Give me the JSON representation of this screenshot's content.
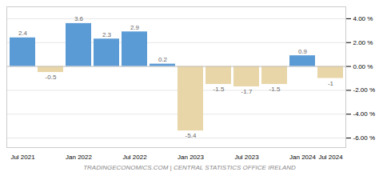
{
  "chart_data": {
    "type": "bar",
    "categories": [
      "Jul 2021",
      null,
      "Jan 2022",
      null,
      "Jul 2022",
      null,
      "Jan 2023",
      null,
      "Jul 2023",
      null,
      "Jan 2024",
      "Jul 2024"
    ],
    "values": [
      2.4,
      -0.5,
      3.6,
      2.3,
      2.9,
      0.2,
      -5.4,
      -1.5,
      -1.7,
      -1.5,
      0.9,
      -1.0
    ],
    "colors": [
      "#5b9bd5",
      "#e8d5a8",
      "#5b9bd5",
      "#5b9bd5",
      "#5b9bd5",
      "#5b9bd5",
      "#e8d5a8",
      "#e8d5a8",
      "#e8d5a8",
      "#e8d5a8",
      "#5b9bd5",
      "#e8d5a8"
    ],
    "ylim": [
      -6.8,
      5.0
    ],
    "yticks": [
      {
        "value": -6.0,
        "label": "-6.00 %"
      },
      {
        "value": -4.0,
        "label": "-4.00 %"
      },
      {
        "value": -2.0,
        "label": "-2.00 %"
      },
      {
        "value": 0.0,
        "label": "0.00 %"
      },
      {
        "value": 2.0,
        "label": "2.00 %"
      },
      {
        "value": 4.0,
        "label": "4.00 %"
      }
    ],
    "grid": true,
    "data_labels": true,
    "annotations": [
      "TRADINGECONOMICS.COM | CENTRAL STATISTICS OFFICE IRELAND"
    ]
  }
}
